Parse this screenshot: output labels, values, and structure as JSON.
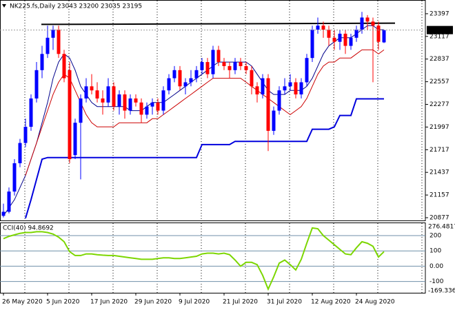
{
  "chart_data": [
    {
      "type": "candlestick",
      "title": "NK225.fs,Daily  23043 23200 23035 23195",
      "categories": [
        "26 May 2020",
        null,
        null,
        null,
        null,
        null,
        null,
        null,
        "5 Jun 2020",
        null,
        null,
        null,
        null,
        null,
        null,
        null,
        "17 Jun 2020",
        null,
        null,
        null,
        null,
        null,
        null,
        null,
        "29 Jun 2020",
        null,
        null,
        null,
        null,
        null,
        null,
        null,
        "9 Jul 2020",
        null,
        null,
        null,
        null,
        null,
        null,
        null,
        "21 Jul 2020",
        null,
        null,
        null,
        null,
        null,
        null,
        null,
        "31 Jul 2020",
        null,
        null,
        null,
        null,
        null,
        null,
        null,
        "12 Aug 2020",
        null,
        null,
        null,
        null,
        null,
        null,
        null,
        "24 Aug 2020",
        null,
        null,
        null,
        null,
        null
      ],
      "open": [
        20900,
        20950,
        21200,
        21550,
        21800,
        22000,
        22350,
        22700,
        22900,
        23100,
        23200,
        22900,
        22700,
        21650,
        22050,
        22350,
        22500,
        22450,
        22350,
        22300,
        22500,
        22250,
        22400,
        22200,
        22350,
        22300,
        22150,
        22250,
        22300,
        22200,
        22450,
        22600,
        22700,
        22500,
        22550,
        22600,
        22700,
        22800,
        22650,
        22950,
        22800,
        22750,
        22700,
        22800,
        22750,
        22700,
        22500,
        22400,
        22600,
        21950,
        22200,
        22450,
        22500,
        22550,
        22400,
        22550,
        22850,
        23200,
        23250,
        23200,
        23100,
        23050,
        23150,
        23000,
        23100,
        23200,
        23350,
        23300,
        23250,
        23043
      ],
      "high": [
        21050,
        21250,
        21600,
        21850,
        22100,
        22400,
        22800,
        23000,
        23250,
        23250,
        23250,
        22950,
        22800,
        22100,
        22400,
        22600,
        22650,
        22550,
        22450,
        22600,
        22550,
        22450,
        22450,
        22400,
        22400,
        22350,
        22300,
        22350,
        22350,
        22500,
        22650,
        22750,
        22750,
        22600,
        22700,
        22750,
        22850,
        22850,
        23000,
        23000,
        22850,
        22800,
        22850,
        22850,
        22800,
        22750,
        22550,
        22650,
        22650,
        22250,
        22500,
        22600,
        22650,
        22600,
        22600,
        22900,
        23250,
        23350,
        23300,
        23250,
        23200,
        23200,
        23200,
        23150,
        23250,
        23420,
        23380,
        23350,
        23300,
        23200
      ],
      "low": [
        20880,
        20930,
        21150,
        21500,
        21750,
        21950,
        22300,
        22600,
        22850,
        22950,
        22850,
        22550,
        21550,
        21600,
        21350,
        22300,
        22400,
        22300,
        22150,
        22250,
        22200,
        22150,
        22100,
        22150,
        22250,
        22050,
        22100,
        22150,
        22150,
        22150,
        22400,
        22550,
        22450,
        22400,
        22500,
        22550,
        22650,
        22600,
        22600,
        22750,
        22700,
        22600,
        22650,
        22700,
        22650,
        22400,
        22300,
        22350,
        21700,
        21900,
        22150,
        22400,
        22450,
        22350,
        22350,
        22500,
        22800,
        23150,
        23100,
        23000,
        22950,
        22950,
        22900,
        22950,
        23050,
        23150,
        23200,
        22550,
        22950,
        23035
      ],
      "close": [
        20950,
        21200,
        21550,
        21800,
        22000,
        22350,
        22700,
        22900,
        23100,
        23200,
        22900,
        22600,
        21600,
        22050,
        22350,
        22500,
        22450,
        22350,
        22300,
        22500,
        22250,
        22400,
        22200,
        22350,
        22300,
        22150,
        22250,
        22300,
        22200,
        22450,
        22600,
        22700,
        22500,
        22550,
        22600,
        22700,
        22800,
        22650,
        22950,
        22800,
        22750,
        22700,
        22800,
        22750,
        22700,
        22500,
        22400,
        22600,
        21950,
        22200,
        22450,
        22500,
        22550,
        22400,
        22550,
        22850,
        23200,
        23250,
        23200,
        23100,
        23050,
        23150,
        23000,
        23100,
        23200,
        23350,
        23300,
        23250,
        23050,
        23195
      ],
      "up_color": "#0000ff",
      "down_color": "#ff0000",
      "overlays": [
        {
          "color": "#00008b",
          "width": 1,
          "values": [
            20900,
            21000,
            21100,
            21250,
            21400,
            21600,
            21800,
            22050,
            22300,
            22600,
            22800,
            22900,
            22850,
            22700,
            22500,
            22400,
            22300,
            22250,
            22250,
            22250,
            22250,
            22250,
            22250,
            22200,
            22200,
            22200,
            22250,
            22300,
            22300,
            22300,
            22350,
            22400,
            22450,
            22500,
            22550,
            22600,
            22650,
            22700,
            22750,
            22800,
            22800,
            22800,
            22800,
            22800,
            22800,
            22750,
            22650,
            22550,
            22450,
            22400,
            22400,
            22400,
            22450,
            22450,
            22450,
            22500,
            22600,
            22750,
            22900,
            23000,
            23050,
            23100,
            23100,
            23100,
            23150,
            23200,
            23250,
            23250,
            23200,
            23200
          ]
        },
        {
          "color": "#cc0000",
          "width": 1,
          "values": [
            null,
            null,
            null,
            null,
            21400,
            21600,
            21800,
            22000,
            22200,
            22400,
            22550,
            22650,
            22600,
            22450,
            22300,
            22150,
            22050,
            22000,
            22000,
            22000,
            22000,
            22050,
            22050,
            22050,
            22050,
            22050,
            22050,
            22100,
            22100,
            22150,
            22200,
            22250,
            22300,
            22350,
            22400,
            22450,
            22500,
            22550,
            22600,
            22600,
            22600,
            22600,
            22600,
            22600,
            22550,
            22500,
            22450,
            22400,
            22350,
            22300,
            22250,
            22200,
            22150,
            22200,
            22250,
            22350,
            22500,
            22650,
            22750,
            22800,
            22800,
            22850,
            22850,
            22850,
            22900,
            22950,
            22950,
            22950,
            22900,
            22950
          ]
        },
        {
          "color": "#0000dd",
          "width": 2,
          "values": [
            null,
            null,
            null,
            null,
            20870,
            21100,
            21350,
            21600,
            21620,
            21620,
            21620,
            21620,
            21620,
            21620,
            21620,
            21620,
            21620,
            21620,
            21620,
            21620,
            21620,
            21620,
            21620,
            21620,
            21620,
            21620,
            21620,
            21620,
            21620,
            21620,
            21620,
            21620,
            21620,
            21620,
            21620,
            21620,
            21780,
            21780,
            21780,
            21780,
            21780,
            21780,
            21820,
            21820,
            21820,
            21820,
            21820,
            21820,
            21820,
            21820,
            21820,
            21820,
            21820,
            21820,
            21820,
            21820,
            21970,
            21970,
            21970,
            21970,
            22000,
            22140,
            22140,
            22140,
            22345,
            22345,
            22345,
            22345,
            22345,
            22345
          ]
        }
      ],
      "trendline": {
        "color": "#000000",
        "values": [
          23265,
          23280
        ]
      },
      "ylim": [
        20843,
        23558
      ],
      "yticks": [
        23397,
        23117,
        22837,
        22557,
        22277,
        21997,
        21717,
        21437,
        21157,
        20877
      ]
    },
    {
      "type": "line",
      "title": "CCI(40) 94.8692",
      "color": "#7cd600",
      "level_color": "#6f8fa8",
      "values": [
        180,
        195,
        205,
        215,
        220,
        220,
        225,
        225,
        220,
        210,
        190,
        160,
        95,
        70,
        70,
        80,
        80,
        75,
        72,
        70,
        70,
        65,
        60,
        55,
        50,
        45,
        45,
        45,
        50,
        55,
        55,
        50,
        50,
        55,
        60,
        65,
        80,
        85,
        85,
        80,
        85,
        75,
        40,
        0,
        25,
        25,
        10,
        -60,
        -150,
        -70,
        20,
        40,
        10,
        -25,
        45,
        150,
        250,
        245,
        200,
        170,
        140,
        110,
        80,
        75,
        120,
        160,
        150,
        130,
        60,
        94.8692
      ],
      "ylim": [
        -169.336,
        276.4817
      ],
      "yticks": [
        200,
        100,
        {
          "value": 0,
          "label": "0.00"
        },
        -100
      ]
    }
  ]
}
